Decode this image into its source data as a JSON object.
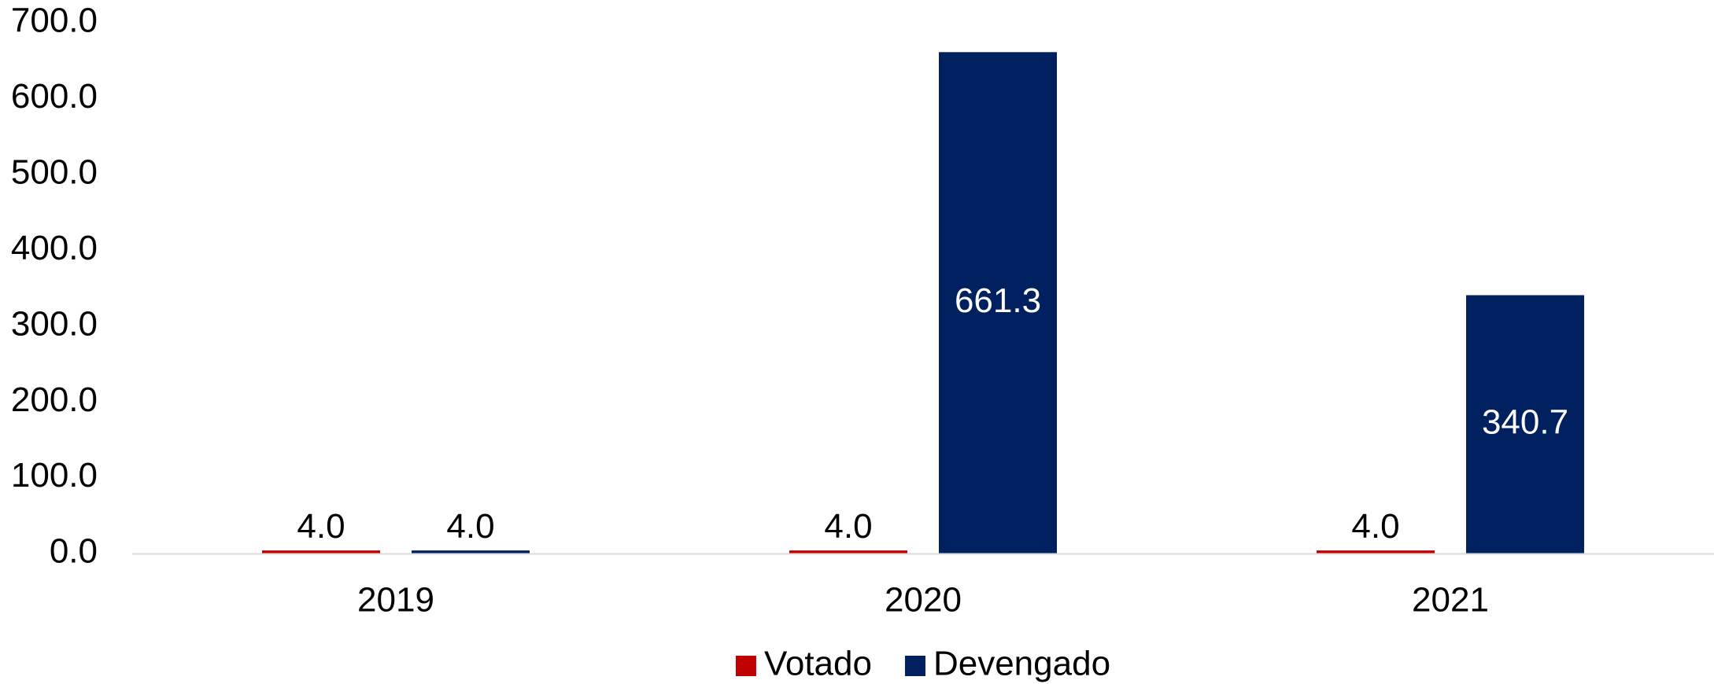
{
  "chart_data": {
    "type": "bar",
    "title": "",
    "xlabel": "",
    "ylabel": "",
    "categories": [
      "2019",
      "2020",
      "2021"
    ],
    "series": [
      {
        "name": "Votado",
        "color": "#C00000",
        "values": [
          4.0,
          4.0,
          4.0
        ],
        "labels": [
          "4.0",
          "4.0",
          "4.0"
        ],
        "label_position": "outside_end"
      },
      {
        "name": "Devengado",
        "color": "#002060",
        "values": [
          4.0,
          661.3,
          340.7
        ],
        "labels": [
          "4.0",
          "661.3",
          "340.7"
        ],
        "label_position": "inside_middle"
      }
    ],
    "ylim": [
      0,
      700
    ],
    "yticks": [
      "0.0",
      "100.0",
      "200.0",
      "300.0",
      "400.0",
      "500.0",
      "600.0",
      "700.0"
    ],
    "grid": false,
    "legend_position": "bottom-center"
  }
}
